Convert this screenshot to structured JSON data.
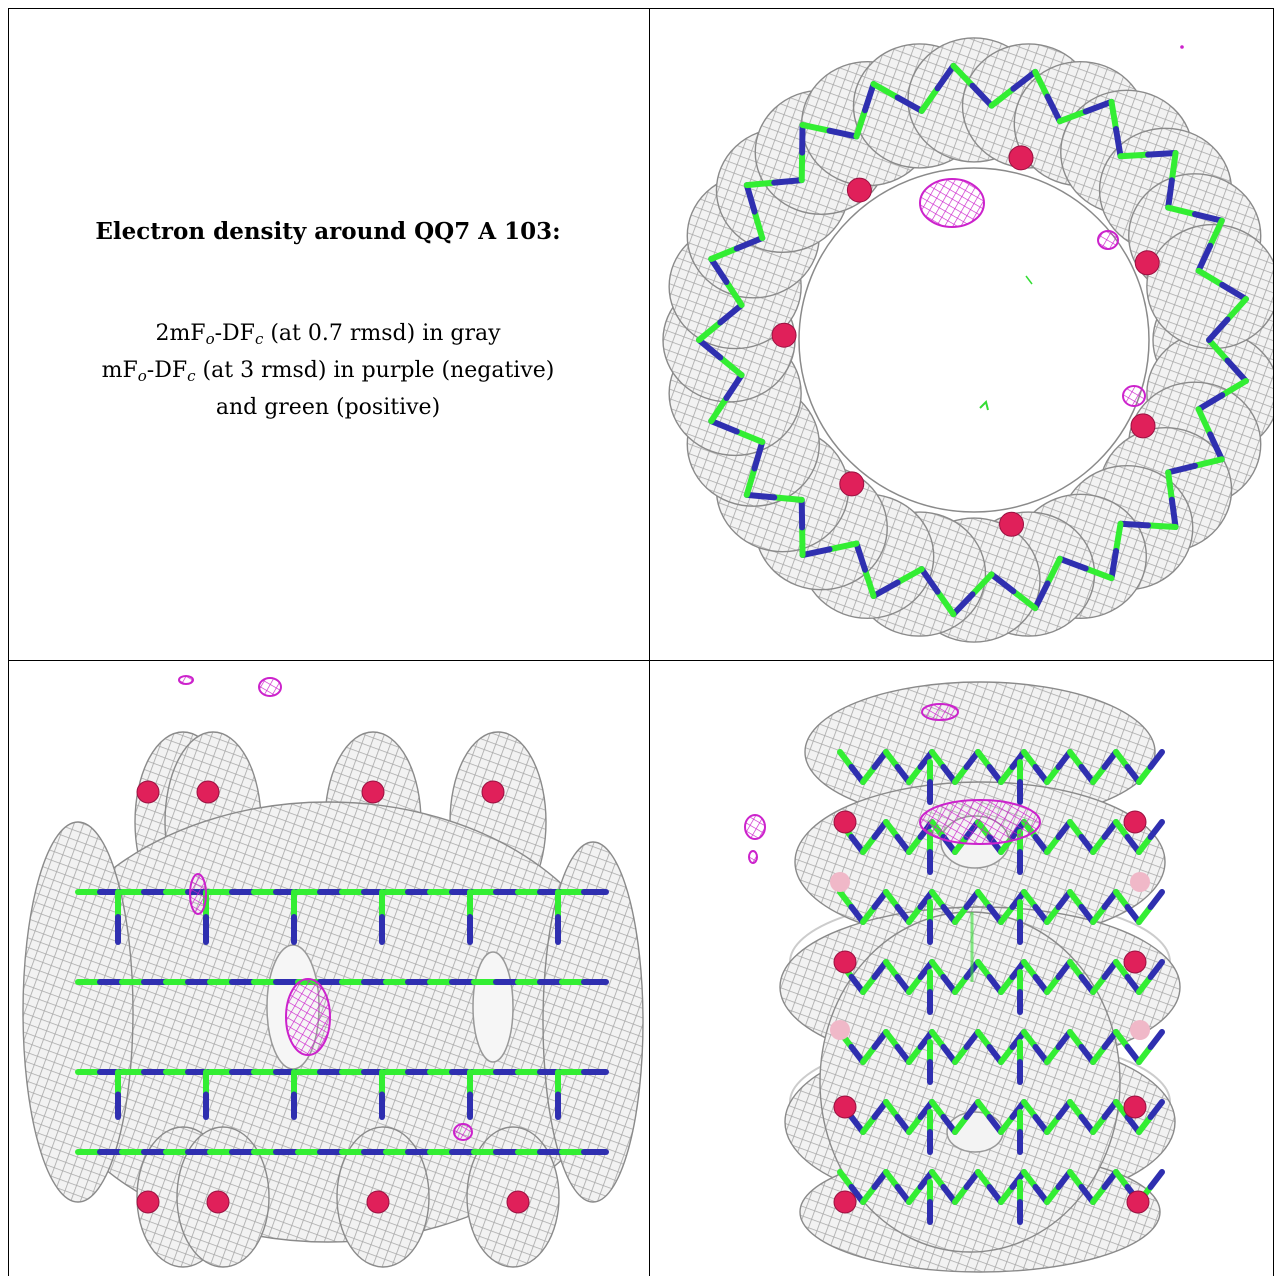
{
  "caption": {
    "title": "Electron density around QQ7 A 103:",
    "line1_pre": "2mF",
    "line1_sub1": "o",
    "line1_mid": "-DF",
    "line1_sub2": "c",
    "line1_post": " (at 0.7 rmsd) in gray",
    "line2_pre": "mF",
    "line2_sub1": "o",
    "line2_mid": "-DF",
    "line2_sub2": "c",
    "line2_post": " (at 3 rmsd) in purple (negative)",
    "line3": "and green (positive)"
  },
  "colors": {
    "mesh": "#a8a8a8",
    "carbon": "#33ee33",
    "nitrogen": "#2f2fb0",
    "oxygen": "#e0205a",
    "negative_density": "#cc22cc",
    "positive_density": "#33dd33"
  },
  "panels": [
    {
      "name": "top-view-panel",
      "view": "top"
    },
    {
      "name": "side-view-panel",
      "view": "side"
    },
    {
      "name": "front-view-panel",
      "view": "front"
    }
  ]
}
